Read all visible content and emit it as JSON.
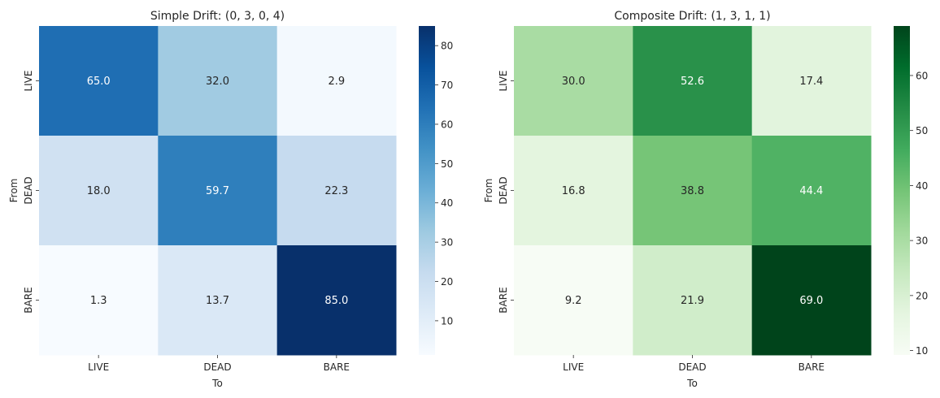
{
  "chart_data": [
    {
      "type": "heatmap",
      "title": "Simple Drift: (0, 3, 0, 4)",
      "xlabel": "To",
      "ylabel": "From",
      "x_categories": [
        "LIVE",
        "DEAD",
        "BARE"
      ],
      "y_categories": [
        "LIVE",
        "DEAD",
        "BARE"
      ],
      "values": [
        [
          65.0,
          32.0,
          2.9
        ],
        [
          18.0,
          59.7,
          22.3
        ],
        [
          1.3,
          13.7,
          85.0
        ]
      ],
      "value_format": ".1f",
      "colormap": "Blues",
      "colormap_stops": [
        "#f7fbff",
        "#deebf7",
        "#c6dbef",
        "#9ecae1",
        "#6baed6",
        "#4292c6",
        "#2171b5",
        "#08519c",
        "#08306b"
      ],
      "vmin": 1.3,
      "vmax": 85.0,
      "colorbar_ticks": [
        10,
        20,
        30,
        40,
        50,
        60,
        70,
        80
      ]
    },
    {
      "type": "heatmap",
      "title": "Composite Drift: (1, 3, 1, 1)",
      "xlabel": "To",
      "ylabel": "From",
      "x_categories": [
        "LIVE",
        "DEAD",
        "BARE"
      ],
      "y_categories": [
        "LIVE",
        "DEAD",
        "BARE"
      ],
      "values": [
        [
          30.0,
          52.6,
          17.4
        ],
        [
          16.8,
          38.8,
          44.4
        ],
        [
          9.2,
          21.9,
          69.0
        ]
      ],
      "value_format": ".1f",
      "colormap": "Greens",
      "colormap_stops": [
        "#f7fcf5",
        "#e5f5e0",
        "#c7e9c0",
        "#a1d99b",
        "#74c476",
        "#41ab5d",
        "#238b45",
        "#006d2c",
        "#00441b"
      ],
      "vmin": 9.2,
      "vmax": 69.0,
      "colorbar_ticks": [
        10,
        20,
        30,
        40,
        50,
        60
      ]
    }
  ]
}
